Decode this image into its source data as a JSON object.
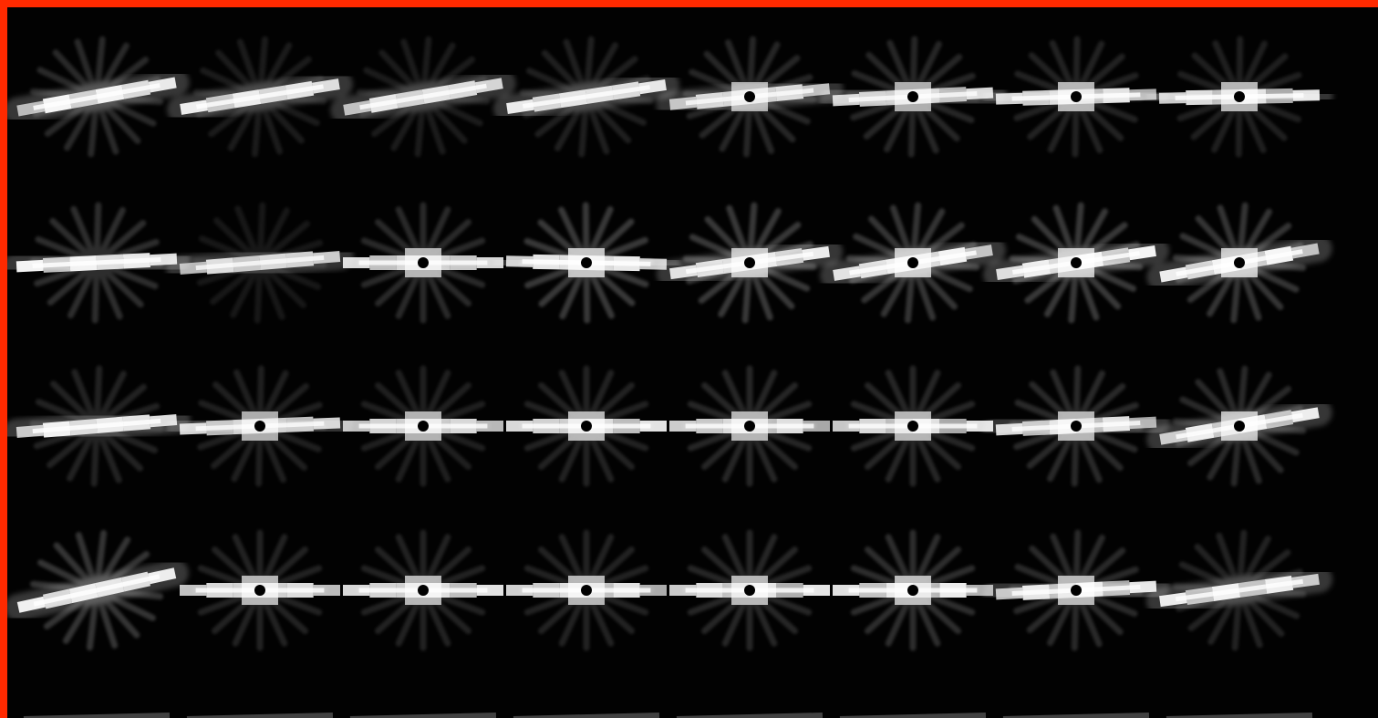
{
  "image": {
    "kind": "glyph-field",
    "background_color": "#020202",
    "border_color": "#ff2a00",
    "glyph_color": "#ffffff",
    "center_dot_color": "#000000"
  },
  "glyph_field": {
    "band_count": 4,
    "columns_per_band": 8,
    "rows": [
      {
        "tilts": [
          0.18,
          0.16,
          0.17,
          0.15,
          0.1,
          0.05,
          0.03,
          0.02
        ],
        "dotted": [
          false,
          false,
          false,
          false,
          true,
          true,
          true,
          true
        ],
        "intensity": [
          0.95,
          0.92,
          0.9,
          0.92,
          0.85,
          0.85,
          0.9,
          0.9
        ],
        "halo": [
          0.55,
          0.35,
          0.35,
          0.4,
          0.5,
          0.5,
          0.45,
          0.4
        ]
      },
      {
        "tilts": [
          0.05,
          0.08,
          0.0,
          -0.02,
          0.14,
          0.16,
          0.15,
          0.18
        ],
        "dotted": [
          false,
          false,
          true,
          true,
          true,
          true,
          true,
          true
        ],
        "intensity": [
          0.95,
          0.85,
          0.88,
          0.95,
          0.92,
          0.95,
          0.95,
          0.95
        ],
        "halo": [
          0.6,
          0.3,
          0.55,
          0.75,
          0.75,
          0.7,
          0.75,
          0.7
        ]
      },
      {
        "tilts": [
          0.08,
          0.04,
          0.0,
          0.0,
          0.0,
          0.0,
          0.05,
          0.17
        ],
        "dotted": [
          false,
          true,
          true,
          true,
          true,
          true,
          true,
          true
        ],
        "intensity": [
          0.95,
          0.85,
          0.88,
          0.9,
          0.88,
          0.88,
          0.88,
          0.92
        ],
        "halo": [
          0.45,
          0.4,
          0.4,
          0.45,
          0.5,
          0.5,
          0.55,
          0.55
        ]
      },
      {
        "tilts": [
          0.22,
          0.0,
          0.0,
          0.0,
          0.0,
          0.0,
          0.05,
          0.14
        ],
        "dotted": [
          false,
          true,
          true,
          true,
          true,
          true,
          true,
          false
        ],
        "intensity": [
          0.95,
          0.9,
          0.9,
          0.9,
          0.9,
          0.92,
          0.9,
          0.92
        ],
        "halo": [
          0.7,
          0.45,
          0.45,
          0.45,
          0.5,
          0.6,
          0.55,
          0.45
        ]
      }
    ]
  }
}
